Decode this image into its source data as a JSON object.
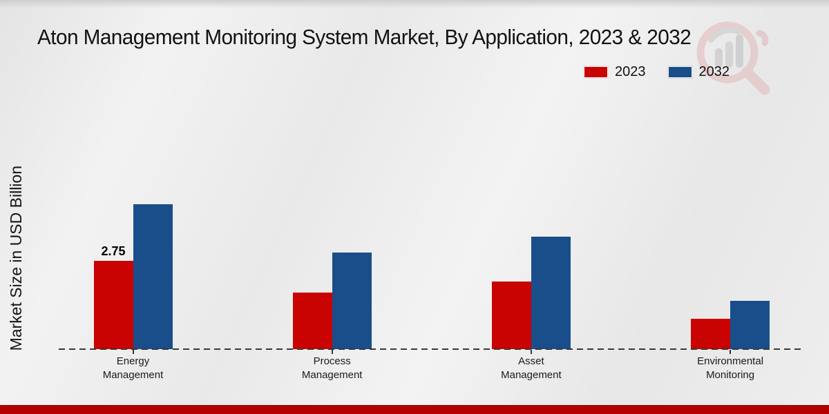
{
  "title": "Aton Management Monitoring System Market, By Application, 2023 & 2032",
  "y_axis_label": "Market Size in USD Billion",
  "legend": {
    "items": [
      {
        "label": "2023",
        "color": "#c90202"
      },
      {
        "label": "2032",
        "color": "#1a4e8a"
      }
    ]
  },
  "watermark_icon": "magnifier-bar-chart-logo",
  "footer_stripe_color": "#b20100",
  "chart_data": {
    "type": "bar",
    "title": "Aton Management Monitoring System Market, By Application, 2023 & 2032",
    "categories": [
      "Energy Management",
      "Process Management",
      "Asset Management",
      "Environmental Monitoring"
    ],
    "series": [
      {
        "name": "2023",
        "color": "#c90202",
        "values": [
          2.75,
          1.75,
          2.1,
          0.95
        ],
        "data_labels": [
          "2.75",
          null,
          null,
          null
        ]
      },
      {
        "name": "2032",
        "color": "#1a4e8a",
        "values": [
          4.5,
          3.0,
          3.5,
          1.5
        ],
        "data_labels": [
          null,
          null,
          null,
          null
        ]
      }
    ],
    "xlabel": "",
    "ylabel": "Market Size in USD Billion",
    "ylim": [
      0,
      5
    ],
    "grid": false,
    "y_axis_visible": false,
    "baseline_style": "dashed",
    "legend_position": "top-right"
  }
}
